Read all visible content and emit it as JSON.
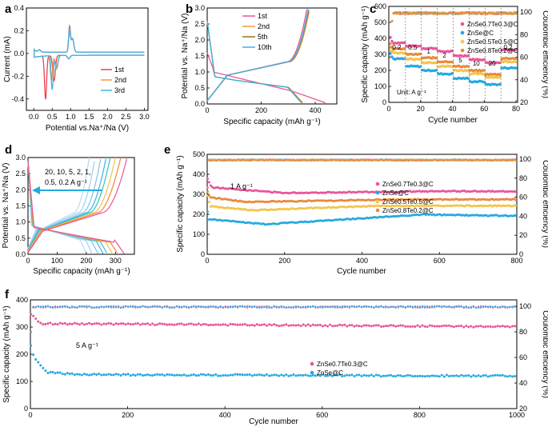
{
  "chart_data": [
    {
      "panel": "a",
      "type": "line",
      "xlabel": "Potential vs.Na⁺/Na (V)",
      "ylabel": "Current (mA)",
      "xlim": [
        -0.2,
        3.1
      ],
      "ylim": [
        -0.5,
        0.4
      ],
      "xticks": [
        0.0,
        0.5,
        1.0,
        1.5,
        2.0,
        2.5,
        3.0
      ],
      "yticks": [
        -0.4,
        -0.2,
        0.0,
        0.2,
        0.4
      ],
      "xtick_labels": [
        "0.0",
        "0.5",
        "1.0",
        "1.5",
        "2.0",
        "2.5",
        "3.0"
      ],
      "ytick_labels": [
        "-0.4",
        "-0.2",
        "0.0",
        "0.2",
        "0.4"
      ],
      "legend": [
        "1st",
        "2nd",
        "3rd"
      ],
      "colors": [
        "#e8434f",
        "#f39a3c",
        "#3fb2e8"
      ]
    },
    {
      "panel": "b",
      "type": "line",
      "xlabel": "Specific capacity (mAh g⁻¹)",
      "ylabel": "Potential vs. Na⁺/Na (V)",
      "xlim": [
        0,
        480
      ],
      "ylim": [
        0,
        3.0
      ],
      "xticks": [
        0,
        200,
        400
      ],
      "yticks": [
        0.0,
        0.5,
        1.0,
        1.5,
        2.0,
        2.5,
        3.0
      ],
      "xtick_labels": [
        "0",
        "200",
        "400"
      ],
      "ytick_labels": [
        "0.0",
        "0.5",
        "1.0",
        "1.5",
        "2.0",
        "2.5",
        "3.0"
      ],
      "legend": [
        "1st",
        "2nd",
        "5th",
        "10th"
      ],
      "colors": [
        "#e8569a",
        "#f39a3c",
        "#8a7a1e",
        "#3fb2e8"
      ]
    },
    {
      "panel": "c",
      "type": "scatter",
      "xlabel": "Cycle number",
      "ylabel": "Specific capacity (mAh g⁻¹)",
      "y2label": "Coulombic efficiency (%)",
      "xlim": [
        0,
        81
      ],
      "ylim": [
        0,
        600
      ],
      "y2lim": [
        20,
        105
      ],
      "xticks": [
        0,
        20,
        40,
        60,
        80
      ],
      "yticks": [
        0,
        100,
        200,
        300,
        400,
        500,
        600
      ],
      "y2ticks": [
        20,
        40,
        60,
        80,
        100
      ],
      "xtick_labels": [
        "0",
        "20",
        "40",
        "60",
        "80"
      ],
      "ytick_labels": [
        "0",
        "100",
        "200",
        "300",
        "400",
        "500",
        "600"
      ],
      "y2tick_labels": [
        "20",
        "40",
        "60",
        "80",
        "100"
      ],
      "rates": [
        "0.2",
        "0.5",
        "1",
        "2",
        "5",
        "10",
        "20",
        "0.2"
      ],
      "unit_label": "Unit: A g⁻¹",
      "legend": [
        "ZnSe0.7Te0.3@C",
        "ZnSe@C",
        "ZnSe0.5Te0.5@C",
        "ZnSe0.8Te0.2@C"
      ],
      "colors": [
        "#e8569a",
        "#25a9e0",
        "#f4c44c",
        "#e8893c"
      ],
      "series": [
        {
          "name": "ZnSe0.7Te0.3@C",
          "segments": [
            372,
            352,
            338,
            318,
            292,
            268,
            248,
            330
          ]
        },
        {
          "name": "ZnSe@C",
          "segments": [
            272,
            225,
            200,
            178,
            150,
            130,
            112,
            215
          ]
        },
        {
          "name": "ZnSe0.5Te0.5@C",
          "segments": [
            310,
            270,
            250,
            225,
            200,
            178,
            158,
            255
          ]
        },
        {
          "name": "ZnSe0.8Te0.2@C",
          "segments": [
            335,
            300,
            278,
            255,
            225,
            198,
            175,
            275
          ]
        }
      ]
    },
    {
      "panel": "d",
      "type": "line",
      "xlabel": "Specific capacity (mAh g⁻¹)",
      "ylabel": "Potential vs. Na⁺/Na (V)",
      "xlim": [
        0,
        365
      ],
      "ylim": [
        0,
        3.0
      ],
      "xticks": [
        0,
        100,
        200,
        300
      ],
      "yticks": [
        0.0,
        0.5,
        1.0,
        1.5,
        2.0,
        2.5,
        3.0
      ],
      "xtick_labels": [
        "0",
        "100",
        "200",
        "300"
      ],
      "ytick_labels": [
        "0.0",
        "0.5",
        "1.0",
        "1.5",
        "2.0",
        "2.5",
        "3.0"
      ],
      "annotation_1": "20, 10, 5, 2, 1,",
      "annotation_2": "0.5, 0.2 A g⁻¹"
    },
    {
      "panel": "e",
      "type": "scatter",
      "xlabel": "Cycle number",
      "ylabel": "Specific capacity (mAh g⁻¹)",
      "y2label": "Coulombic efficiency (%)",
      "xlim": [
        0,
        800
      ],
      "ylim": [
        0,
        500
      ],
      "y2lim": [
        0,
        105
      ],
      "xticks": [
        0,
        200,
        400,
        600,
        800
      ],
      "yticks": [
        0,
        100,
        200,
        300,
        400,
        500
      ],
      "y2ticks": [
        0,
        20,
        40,
        60,
        80,
        100
      ],
      "xtick_labels": [
        "0",
        "200",
        "400",
        "600",
        "800"
      ],
      "ytick_labels": [
        "0",
        "100",
        "200",
        "300",
        "400",
        "500"
      ],
      "y2tick_labels": [
        "0",
        "20",
        "40",
        "60",
        "80",
        "100"
      ],
      "rate_label": "1 A g⁻¹",
      "legend": [
        "ZnSe0.7Te0.3@C",
        "ZnSe@C",
        "ZnSe0.5Te0.5@C",
        "ZnSe0.8Te0.2@C"
      ],
      "colors": [
        "#e8569a",
        "#25a9e0",
        "#f4c44c",
        "#e8893c"
      ]
    },
    {
      "panel": "f",
      "type": "scatter",
      "xlabel": "Cycle number",
      "ylabel": "Specific capacity (mAh g⁻¹)",
      "y2label": "Coulombic efficiency (%)",
      "xlim": [
        0,
        1000
      ],
      "ylim": [
        0,
        400
      ],
      "y2lim": [
        20,
        105
      ],
      "xticks": [
        0,
        200,
        400,
        600,
        800,
        1000
      ],
      "yticks": [
        0,
        100,
        200,
        300,
        400
      ],
      "y2ticks": [
        20,
        40,
        60,
        80,
        100
      ],
      "xtick_labels": [
        "0",
        "200",
        "400",
        "600",
        "800",
        "1000"
      ],
      "ytick_labels": [
        "0",
        "100",
        "200",
        "300",
        "400"
      ],
      "y2tick_labels": [
        "20",
        "40",
        "60",
        "80",
        "100"
      ],
      "rate_label": "5 A g⁻¹",
      "legend": [
        "ZnSe0.7Te0.3@C",
        "ZnSe@C"
      ],
      "colors": [
        "#e8569a",
        "#25a9e0"
      ]
    }
  ]
}
